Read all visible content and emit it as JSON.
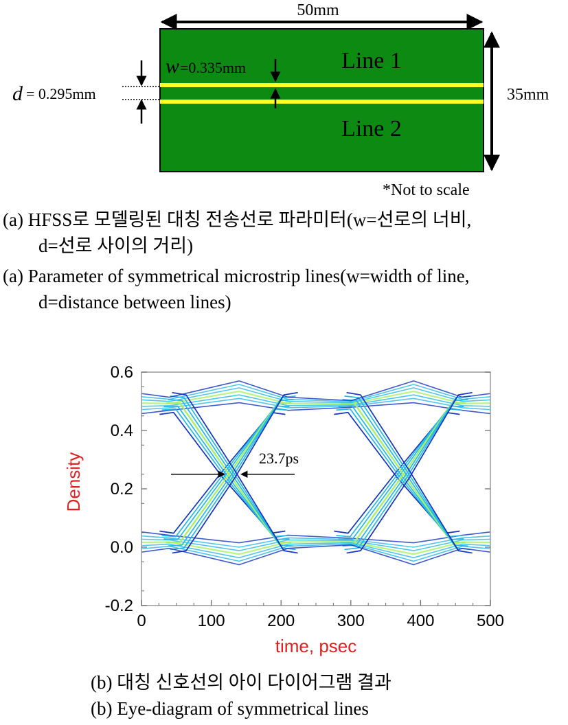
{
  "diagram_a": {
    "width_dim": "50mm",
    "height_dim": "35mm",
    "w_symbol": "w",
    "w_value": "=0.335mm",
    "d_symbol": "d",
    "d_value": "= 0.295mm",
    "line1": "Line 1",
    "line2": "Line 2",
    "note": "*Not to scale",
    "colors": {
      "board": "#0c8a12",
      "trace": "#ffff22"
    }
  },
  "caption_a_kr_line1": "(a) HFSS로 모델링된 대칭 전송선로 파라미터(w=선로의 너비,",
  "caption_a_kr_line2": "d=선로 사이의 거리)",
  "caption_a_en_line1": "(a) Parameter of symmetrical microstrip lines(w=width of line,",
  "caption_a_en_line2": "d=distance between lines)",
  "chart_data": {
    "type": "line",
    "title": "",
    "xlabel": "time, psec",
    "ylabel": "Density",
    "xlim": [
      0,
      500
    ],
    "ylim": [
      -0.2,
      0.6
    ],
    "xticks": [
      "0",
      "100",
      "200",
      "300",
      "400",
      "500"
    ],
    "yticks": [
      "-0.2",
      "0.0",
      "0.2",
      "0.4",
      "0.6"
    ],
    "annotation": "23.7ps",
    "eye_crossings_psec": [
      125,
      375
    ],
    "levels": {
      "high": 0.49,
      "low": 0.02
    },
    "colors": {
      "label": "#e02020",
      "trace_outer": "#1030c0",
      "trace_mid": "#20b8e8",
      "trace_core": "#a8f060"
    }
  },
  "caption_b_kr": "(b) 대칭 신호선의 아이 다이어그램 결과",
  "caption_b_en": "(b) Eye-diagram of symmetrical lines"
}
